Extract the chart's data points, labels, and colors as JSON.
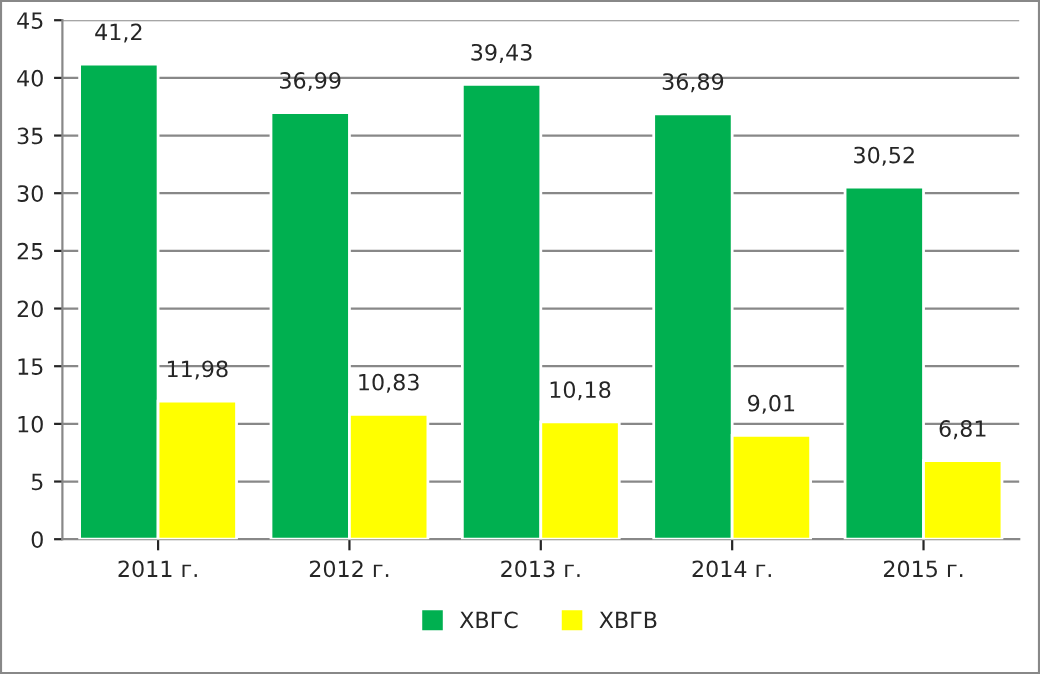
{
  "chart_data": {
    "type": "bar",
    "categories": [
      "2011 г.",
      "2012 г.",
      "2013 г.",
      "2014 г.",
      "2015 г."
    ],
    "series": [
      {
        "name": "ХВГС",
        "color": "#00b050",
        "values": [
          41.2,
          36.99,
          39.43,
          36.89,
          30.52
        ],
        "value_labels": [
          "41,2",
          "36,99",
          "39,43",
          "36,89",
          "30,52"
        ]
      },
      {
        "name": "ХВГВ",
        "color": "#ffff00",
        "values": [
          11.98,
          10.83,
          10.18,
          9.01,
          6.81
        ],
        "value_labels": [
          "11,98",
          "10,83",
          "10,18",
          "9,01",
          "6,81"
        ]
      }
    ],
    "ylim": [
      0,
      45
    ],
    "yticks": [
      0,
      5,
      10,
      15,
      20,
      25,
      30,
      35,
      40,
      45
    ],
    "grid": "y",
    "legend": "bottom"
  }
}
